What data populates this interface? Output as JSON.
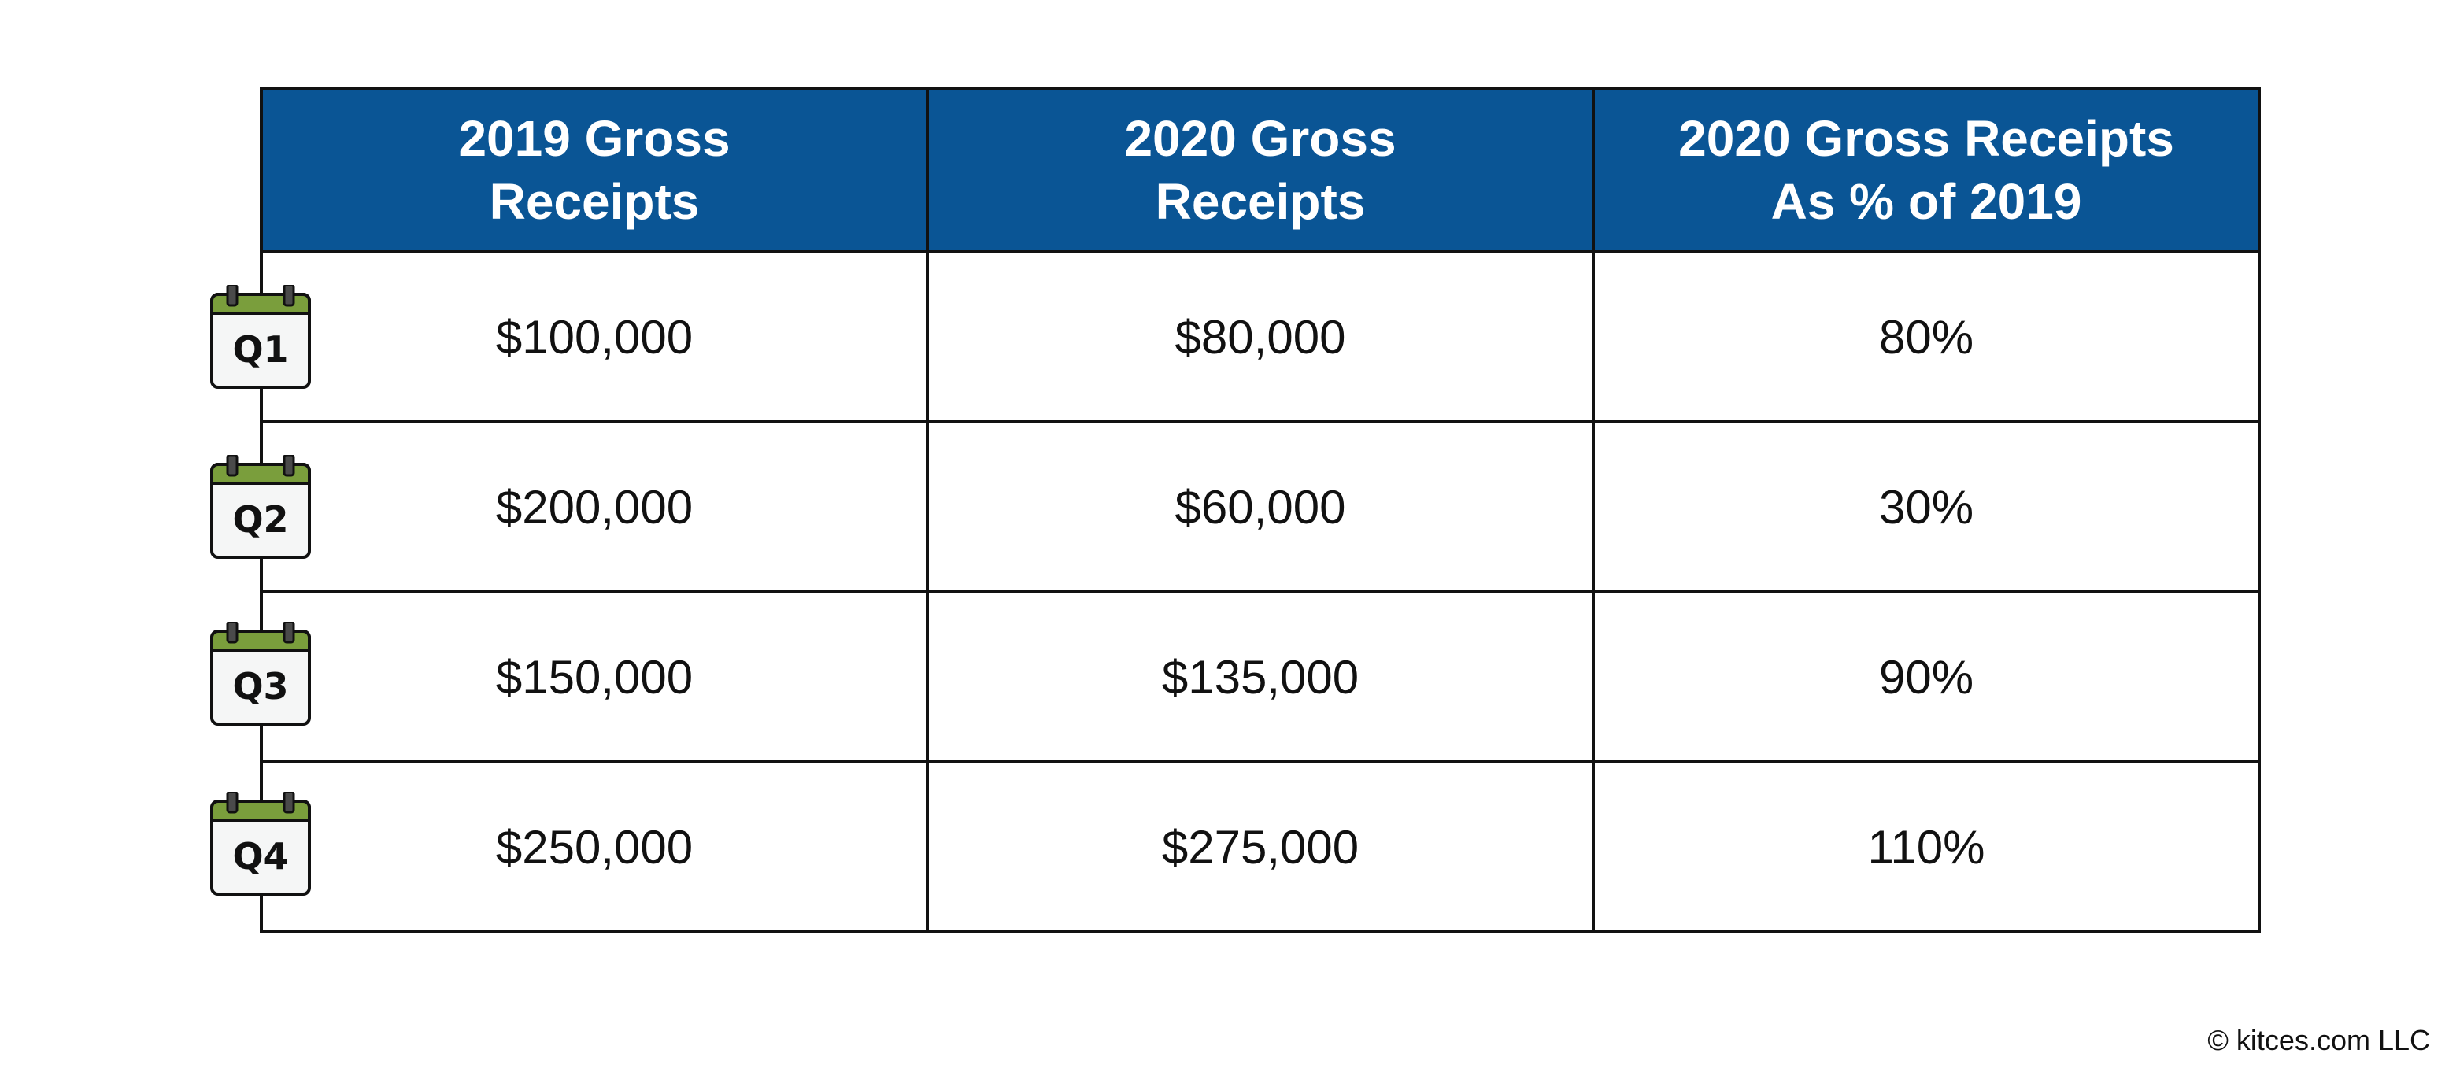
{
  "table": {
    "headers": [
      [
        "2019 Gross",
        "Receipts"
      ],
      [
        "2020 Gross",
        "Receipts"
      ],
      [
        "2020 Gross Receipts",
        "As % of 2019"
      ]
    ],
    "rows": [
      {
        "quarter": "Q1",
        "cells": [
          "$100,000",
          "$80,000",
          "80%"
        ]
      },
      {
        "quarter": "Q2",
        "cells": [
          "$200,000",
          "$60,000",
          "30%"
        ]
      },
      {
        "quarter": "Q3",
        "cells": [
          "$150,000",
          "$135,000",
          "90%"
        ]
      },
      {
        "quarter": "Q4",
        "cells": [
          "$250,000",
          "$275,000",
          "110%"
        ]
      }
    ]
  },
  "colors": {
    "header_background": "#0a5595",
    "calendar_top": "#7a9e3c",
    "grid_lines": "#111111"
  },
  "icons": {
    "quarter_marker": "calendar-icon"
  },
  "footer": {
    "copyright": "© kitces.com LLC"
  }
}
